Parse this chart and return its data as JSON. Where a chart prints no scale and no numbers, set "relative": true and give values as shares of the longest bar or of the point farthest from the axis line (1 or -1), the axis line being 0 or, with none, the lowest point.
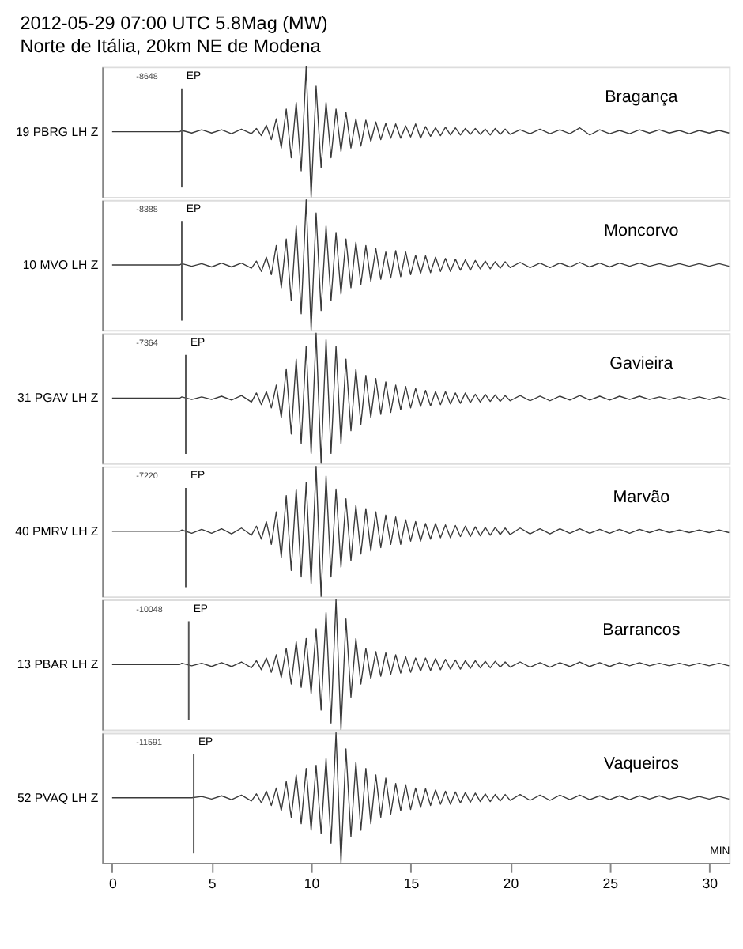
{
  "chart_data": [
    {
      "type": "line",
      "relative": true,
      "title": "2012-05-29 07:00 UTC  5.8Mag (MW)",
      "subtitle": "Norte de Itália, 20km NE de Modena",
      "ylabel": "19  PBRG   LH Z",
      "annotations": [
        "-8648",
        "Bragança"
      ],
      "ref_lines": [
        {
          "axis": "x",
          "value": 3.5,
          "label": "EP"
        }
      ],
      "xlim": [
        -0.5,
        31
      ],
      "tick_labels": false,
      "x": [
        0,
        3.4,
        3.5,
        4,
        4.5,
        5,
        5.5,
        6,
        6.5,
        7,
        7.25,
        7.5,
        7.75,
        8,
        8.25,
        8.5,
        8.75,
        9,
        9.25,
        9.5,
        9.75,
        10,
        10.25,
        10.5,
        10.75,
        11,
        11.25,
        11.5,
        11.75,
        12,
        12.25,
        12.5,
        12.75,
        13,
        13.25,
        13.5,
        13.75,
        14,
        14.25,
        14.5,
        14.75,
        15,
        15.25,
        15.5,
        15.75,
        16,
        16.25,
        16.5,
        16.75,
        17,
        17.25,
        17.5,
        17.75,
        18,
        18.25,
        18.5,
        18.75,
        19,
        19.25,
        19.5,
        19.75,
        20,
        20.5,
        21,
        21.5,
        22,
        22.5,
        23,
        23.5,
        24,
        24.5,
        25,
        25.5,
        26,
        26.5,
        27,
        27.5,
        28,
        28.5,
        29,
        29.5,
        30,
        30.5,
        31
      ],
      "series": [
        {
          "color": "#3a3a3a",
          "values": [
            0.5,
            0.5,
            0.51,
            0.49,
            0.515,
            0.49,
            0.515,
            0.485,
            0.52,
            0.485,
            0.525,
            0.47,
            0.55,
            0.44,
            0.6,
            0.375,
            0.675,
            0.3,
            0.725,
            0.2,
            1,
            0,
            0.85,
            0.225,
            0.725,
            0.3,
            0.675,
            0.35,
            0.65,
            0.375,
            0.6,
            0.39,
            0.59,
            0.425,
            0.575,
            0.44,
            0.565,
            0.45,
            0.56,
            0.45,
            0.545,
            0.46,
            0.56,
            0.45,
            0.54,
            0.465,
            0.53,
            0.47,
            0.535,
            0.475,
            0.53,
            0.475,
            0.525,
            0.48,
            0.525,
            0.48,
            0.52,
            0.475,
            0.525,
            0.48,
            0.52,
            0.48,
            0.515,
            0.485,
            0.52,
            0.485,
            0.515,
            0.485,
            0.53,
            0.475,
            0.515,
            0.485,
            0.51,
            0.485,
            0.515,
            0.49,
            0.515,
            0.49,
            0.51,
            0.485,
            0.51,
            0.49,
            0.51,
            0.49
          ]
        }
      ]
    },
    {
      "type": "line",
      "relative": true,
      "ylabel": "10  MVO    LH Z",
      "annotations": [
        "-8388",
        "Moncorvo"
      ],
      "ref_lines": [
        {
          "axis": "x",
          "value": 3.5,
          "label": "EP"
        }
      ],
      "xlim": [
        -0.5,
        31
      ],
      "tick_labels": false,
      "x": [
        0,
        3.4,
        3.5,
        4,
        4.5,
        5,
        5.5,
        6,
        6.5,
        7,
        7.25,
        7.5,
        7.75,
        8,
        8.25,
        8.5,
        8.75,
        9,
        9.25,
        9.5,
        9.75,
        10,
        10.25,
        10.5,
        10.75,
        11,
        11.25,
        11.5,
        11.75,
        12,
        12.25,
        12.5,
        12.75,
        13,
        13.25,
        13.5,
        13.75,
        14,
        14.25,
        14.5,
        14.75,
        15,
        15.25,
        15.5,
        15.75,
        16,
        16.25,
        16.5,
        16.75,
        17,
        17.25,
        17.5,
        17.75,
        18,
        18.25,
        18.5,
        18.75,
        19,
        19.25,
        19.5,
        19.75,
        20,
        20.5,
        21,
        21.5,
        22,
        22.5,
        23,
        23.5,
        24,
        24.5,
        25,
        25.5,
        26,
        26.5,
        27,
        27.5,
        28,
        28.5,
        29,
        29.5,
        30,
        30.5,
        31
      ],
      "series": [
        {
          "color": "#3a3a3a",
          "values": [
            0.5,
            0.5,
            0.51,
            0.49,
            0.51,
            0.485,
            0.515,
            0.485,
            0.515,
            0.475,
            0.53,
            0.45,
            0.56,
            0.425,
            0.65,
            0.325,
            0.7,
            0.225,
            0.8,
            0.125,
            1,
            0,
            0.9,
            0.15,
            0.8,
            0.225,
            0.75,
            0.275,
            0.7,
            0.325,
            0.675,
            0.35,
            0.65,
            0.375,
            0.625,
            0.39,
            0.6,
            0.4,
            0.61,
            0.41,
            0.6,
            0.425,
            0.575,
            0.435,
            0.57,
            0.44,
            0.56,
            0.45,
            0.55,
            0.45,
            0.545,
            0.46,
            0.54,
            0.46,
            0.535,
            0.47,
            0.53,
            0.47,
            0.525,
            0.475,
            0.525,
            0.48,
            0.52,
            0.48,
            0.515,
            0.48,
            0.515,
            0.485,
            0.52,
            0.485,
            0.515,
            0.485,
            0.515,
            0.49,
            0.515,
            0.49,
            0.51,
            0.49,
            0.51,
            0.49,
            0.51,
            0.49,
            0.51,
            0.49
          ]
        }
      ]
    },
    {
      "type": "line",
      "relative": true,
      "ylabel": "31  PGAV   LH Z",
      "annotations": [
        "-7364",
        "Gavieira"
      ],
      "ref_lines": [
        {
          "axis": "x",
          "value": 3.7,
          "label": "EP"
        }
      ],
      "xlim": [
        -0.5,
        31
      ],
      "tick_labels": false,
      "x": [
        0,
        3.4,
        3.5,
        4,
        4.5,
        5,
        5.5,
        6,
        6.5,
        7,
        7.25,
        7.5,
        7.75,
        8,
        8.25,
        8.5,
        8.75,
        9,
        9.25,
        9.5,
        9.75,
        10,
        10.25,
        10.5,
        10.75,
        11,
        11.25,
        11.5,
        11.75,
        12,
        12.25,
        12.5,
        12.75,
        13,
        13.25,
        13.5,
        13.75,
        14,
        14.25,
        14.5,
        14.75,
        15,
        15.25,
        15.5,
        15.75,
        16,
        16.25,
        16.5,
        16.75,
        17,
        17.25,
        17.5,
        17.75,
        18,
        18.25,
        18.5,
        18.75,
        19,
        19.25,
        19.5,
        19.75,
        20,
        20.5,
        21,
        21.5,
        22,
        22.5,
        23,
        23.5,
        24,
        24.5,
        25,
        25.5,
        26,
        26.5,
        27,
        27.5,
        28,
        28.5,
        29,
        29.5,
        30,
        30.5,
        31
      ],
      "series": [
        {
          "color": "#3a3a3a",
          "values": [
            0.5,
            0.5,
            0.51,
            0.49,
            0.51,
            0.49,
            0.515,
            0.485,
            0.52,
            0.47,
            0.54,
            0.45,
            0.55,
            0.425,
            0.6,
            0.35,
            0.725,
            0.225,
            0.8,
            0.15,
            0.9,
            0.075,
            1,
            0,
            0.95,
            0.075,
            0.9,
            0.15,
            0.8,
            0.25,
            0.725,
            0.3,
            0.675,
            0.35,
            0.65,
            0.375,
            0.625,
            0.39,
            0.6,
            0.41,
            0.59,
            0.425,
            0.575,
            0.435,
            0.56,
            0.44,
            0.55,
            0.45,
            0.55,
            0.455,
            0.54,
            0.46,
            0.54,
            0.465,
            0.53,
            0.47,
            0.53,
            0.475,
            0.525,
            0.475,
            0.52,
            0.48,
            0.52,
            0.48,
            0.515,
            0.48,
            0.515,
            0.485,
            0.52,
            0.485,
            0.515,
            0.485,
            0.515,
            0.49,
            0.515,
            0.49,
            0.51,
            0.49,
            0.51,
            0.49,
            0.51,
            0.49,
            0.51,
            0.49
          ]
        }
      ]
    },
    {
      "type": "line",
      "relative": true,
      "ylabel": "40  PMRV   LH Z",
      "annotations": [
        "-7220",
        "Marvão"
      ],
      "ref_lines": [
        {
          "axis": "x",
          "value": 3.7,
          "label": "EP"
        }
      ],
      "xlim": [
        -0.5,
        31
      ],
      "tick_labels": false,
      "x": [
        0,
        3.4,
        3.5,
        4,
        4.5,
        5,
        5.5,
        6,
        6.5,
        7,
        7.25,
        7.5,
        7.75,
        8,
        8.25,
        8.5,
        8.75,
        9,
        9.25,
        9.5,
        9.75,
        10,
        10.25,
        10.5,
        10.75,
        11,
        11.25,
        11.5,
        11.75,
        12,
        12.25,
        12.5,
        12.75,
        13,
        13.25,
        13.5,
        13.75,
        14,
        14.25,
        14.5,
        14.75,
        15,
        15.25,
        15.5,
        15.75,
        16,
        16.25,
        16.5,
        16.75,
        17,
        17.25,
        17.5,
        17.75,
        18,
        18.25,
        18.5,
        18.75,
        19,
        19.25,
        19.5,
        19.75,
        20,
        20.5,
        21,
        21.5,
        22,
        22.5,
        23,
        23.5,
        24,
        24.5,
        25,
        25.5,
        26,
        26.5,
        27,
        27.5,
        28,
        28.5,
        29,
        29.5,
        30,
        30.5,
        31
      ],
      "series": [
        {
          "color": "#3a3a3a",
          "values": [
            0.5,
            0.5,
            0.51,
            0.485,
            0.515,
            0.485,
            0.52,
            0.48,
            0.525,
            0.47,
            0.54,
            0.44,
            0.575,
            0.4,
            0.65,
            0.3,
            0.775,
            0.2,
            0.825,
            0.15,
            0.875,
            0.1,
            1,
            0,
            0.925,
            0.15,
            0.825,
            0.225,
            0.75,
            0.275,
            0.7,
            0.325,
            0.675,
            0.35,
            0.65,
            0.375,
            0.625,
            0.4,
            0.61,
            0.4,
            0.59,
            0.425,
            0.575,
            0.425,
            0.56,
            0.44,
            0.56,
            0.45,
            0.55,
            0.45,
            0.545,
            0.46,
            0.54,
            0.46,
            0.535,
            0.465,
            0.53,
            0.47,
            0.53,
            0.475,
            0.525,
            0.475,
            0.525,
            0.48,
            0.52,
            0.48,
            0.52,
            0.485,
            0.52,
            0.485,
            0.515,
            0.485,
            0.515,
            0.485,
            0.515,
            0.49,
            0.515,
            0.49,
            0.51,
            0.49,
            0.51,
            0.49,
            0.51,
            0.49
          ]
        }
      ]
    },
    {
      "type": "line",
      "relative": true,
      "ylabel": "13  PBAR   LH Z",
      "annotations": [
        "-10048",
        "Barrancos"
      ],
      "ref_lines": [
        {
          "axis": "x",
          "value": 3.85,
          "label": "EP"
        }
      ],
      "xlim": [
        -0.5,
        31
      ],
      "tick_labels": false,
      "x": [
        0,
        3.4,
        3.5,
        4,
        4.5,
        5,
        5.5,
        6,
        6.5,
        7,
        7.25,
        7.5,
        7.75,
        8,
        8.25,
        8.5,
        8.75,
        9,
        9.25,
        9.5,
        9.75,
        10,
        10.25,
        10.5,
        10.75,
        11,
        11.25,
        11.5,
        11.75,
        12,
        12.25,
        12.5,
        12.75,
        13,
        13.25,
        13.5,
        13.75,
        14,
        14.25,
        14.5,
        14.75,
        15,
        15.25,
        15.5,
        15.75,
        16,
        16.25,
        16.5,
        16.75,
        17,
        17.25,
        17.5,
        17.75,
        18,
        18.25,
        18.5,
        18.75,
        19,
        19.25,
        19.5,
        19.75,
        20,
        20.5,
        21,
        21.5,
        22,
        22.5,
        23,
        23.5,
        24,
        24.5,
        25,
        25.5,
        26,
        26.5,
        27,
        27.5,
        28,
        28.5,
        29,
        29.5,
        30,
        30.5,
        31
      ],
      "series": [
        {
          "color": "#3a3a3a",
          "values": [
            0.5,
            0.5,
            0.51,
            0.49,
            0.51,
            0.485,
            0.515,
            0.485,
            0.52,
            0.475,
            0.53,
            0.46,
            0.55,
            0.44,
            0.575,
            0.4,
            0.625,
            0.35,
            0.675,
            0.325,
            0.7,
            0.275,
            0.775,
            0.15,
            0.9,
            0.05,
            1,
            0,
            0.85,
            0.25,
            0.7,
            0.35,
            0.625,
            0.39,
            0.6,
            0.41,
            0.59,
            0.425,
            0.575,
            0.435,
            0.56,
            0.44,
            0.55,
            0.45,
            0.55,
            0.455,
            0.545,
            0.46,
            0.54,
            0.465,
            0.535,
            0.465,
            0.53,
            0.47,
            0.53,
            0.475,
            0.525,
            0.475,
            0.525,
            0.48,
            0.52,
            0.48,
            0.52,
            0.48,
            0.515,
            0.48,
            0.515,
            0.485,
            0.52,
            0.485,
            0.515,
            0.485,
            0.515,
            0.49,
            0.515,
            0.49,
            0.51,
            0.49,
            0.51,
            0.49,
            0.51,
            0.49,
            0.51,
            0.49
          ]
        }
      ]
    },
    {
      "type": "line",
      "relative": true,
      "ylabel": "52  PVAQ   LH Z",
      "xlabel": "MIN",
      "annotations": [
        "-11591",
        "Vaqueiros"
      ],
      "ref_lines": [
        {
          "axis": "x",
          "value": 4.1,
          "label": "EP"
        }
      ],
      "xlim": [
        -0.5,
        31
      ],
      "xticks": [
        0,
        5,
        10,
        15,
        20,
        25,
        30
      ],
      "tick_labels": "x",
      "x": [
        0,
        3.4,
        3.5,
        4,
        4.5,
        5,
        5.5,
        6,
        6.5,
        7,
        7.25,
        7.5,
        7.75,
        8,
        8.25,
        8.5,
        8.75,
        9,
        9.25,
        9.5,
        9.75,
        10,
        10.25,
        10.5,
        10.75,
        11,
        11.25,
        11.5,
        11.75,
        12,
        12.25,
        12.5,
        12.75,
        13,
        13.25,
        13.5,
        13.75,
        14,
        14.25,
        14.5,
        14.75,
        15,
        15.25,
        15.5,
        15.75,
        16,
        16.25,
        16.5,
        16.75,
        17,
        17.25,
        17.5,
        17.75,
        18,
        18.25,
        18.5,
        18.75,
        19,
        19.25,
        19.5,
        19.75,
        20,
        20.5,
        21,
        21.5,
        22,
        22.5,
        23,
        23.5,
        24,
        24.5,
        25,
        25.5,
        26,
        26.5,
        27,
        27.5,
        28,
        28.5,
        29,
        29.5,
        30,
        30.5,
        31
      ],
      "series": [
        {
          "color": "#3a3a3a",
          "values": [
            0.5,
            0.5,
            0.5,
            0.5,
            0.51,
            0.49,
            0.515,
            0.485,
            0.52,
            0.475,
            0.53,
            0.46,
            0.55,
            0.44,
            0.575,
            0.4,
            0.625,
            0.35,
            0.675,
            0.3,
            0.725,
            0.25,
            0.75,
            0.225,
            0.8,
            0.15,
            1,
            0,
            0.875,
            0.2,
            0.775,
            0.25,
            0.725,
            0.3,
            0.675,
            0.35,
            0.65,
            0.375,
            0.61,
            0.4,
            0.6,
            0.41,
            0.575,
            0.425,
            0.57,
            0.44,
            0.56,
            0.45,
            0.55,
            0.45,
            0.545,
            0.46,
            0.54,
            0.465,
            0.535,
            0.47,
            0.53,
            0.47,
            0.525,
            0.475,
            0.525,
            0.48,
            0.525,
            0.48,
            0.52,
            0.48,
            0.52,
            0.485,
            0.52,
            0.485,
            0.515,
            0.485,
            0.515,
            0.485,
            0.515,
            0.49,
            0.515,
            0.49,
            0.51,
            0.49,
            0.51,
            0.49,
            0.51,
            0.49
          ]
        }
      ]
    }
  ]
}
